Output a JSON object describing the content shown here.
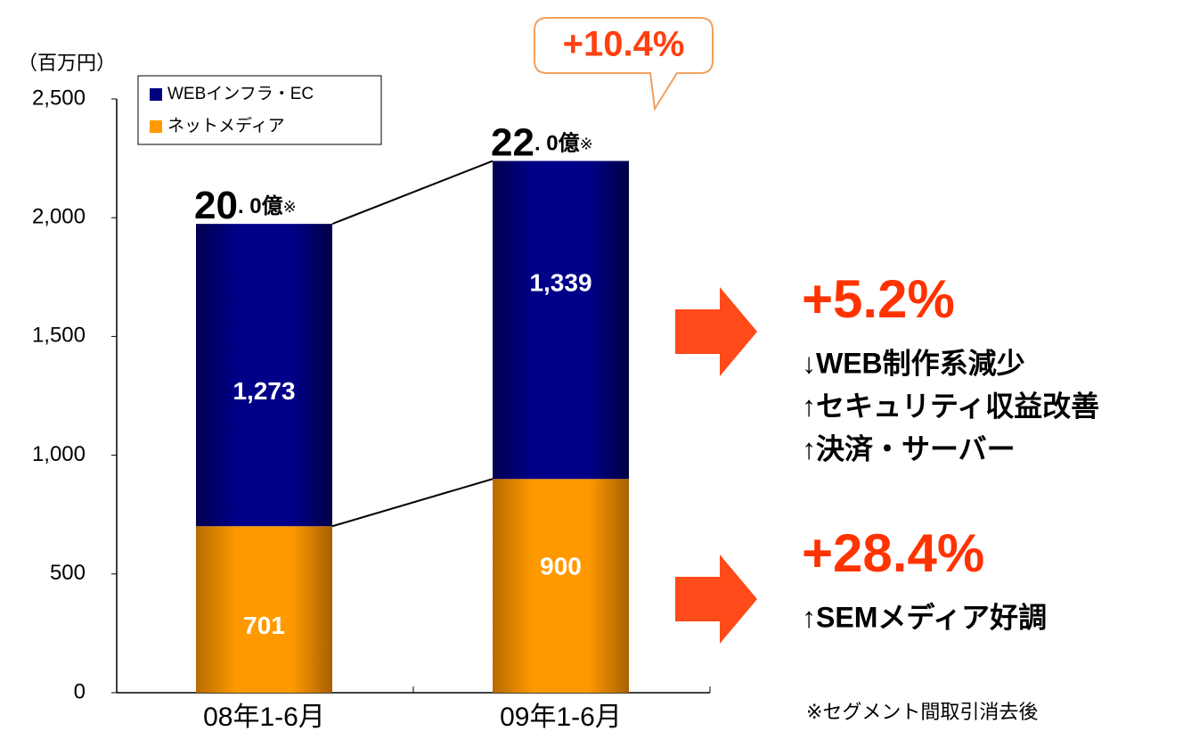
{
  "chart_data": {
    "type": "stacked_bar",
    "unit_label": "（百万円）",
    "categories": [
      "08年1-6月",
      "09年1-6月"
    ],
    "series": [
      {
        "name": "ネットメディア",
        "color": "#ff9900",
        "values": [
          701,
          900
        ],
        "value_labels": [
          "701",
          "900"
        ]
      },
      {
        "name": "WEBインフラ・EC",
        "color": "#000080",
        "values": [
          1273,
          1339
        ],
        "value_labels": [
          "1,273",
          "1,339"
        ]
      }
    ],
    "totals": [
      {
        "main": "20",
        "rest": ". 0億",
        "mark": "※"
      },
      {
        "main": "22",
        "rest": ". 0億",
        "mark": "※"
      }
    ],
    "growth_callout": "+10.4%",
    "ylim": [
      0,
      2500
    ],
    "yticks": [
      0,
      500,
      {
        "value": 1000,
        "label": "1,000"
      },
      {
        "value": 1500,
        "label": "1,500"
      },
      {
        "value": 2000,
        "label": "2,000"
      },
      {
        "value": 2500,
        "label": "2,500"
      }
    ],
    "notes": [
      {
        "headline": "+5.2%",
        "lines": [
          "↓WEB制作系減少",
          "↑セキュリティ収益改善",
          "↑決済・サーバー"
        ]
      },
      {
        "headline": "+28.4%",
        "lines": [
          "↑SEMメディア好調"
        ]
      }
    ],
    "footnote": "※セグメント間取引消去後"
  }
}
